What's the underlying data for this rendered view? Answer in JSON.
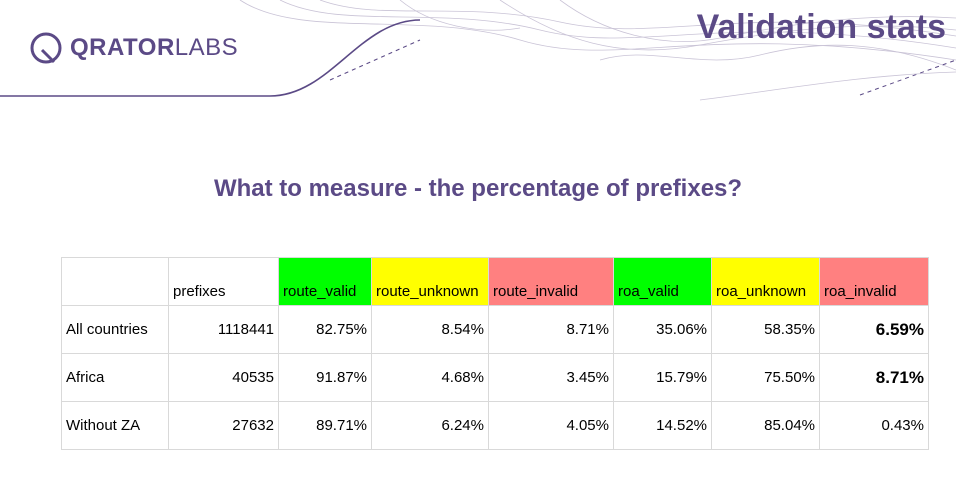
{
  "header": {
    "logo_bold": "QRATOR",
    "logo_light": "LABS",
    "title": "Validation stats"
  },
  "subtitle": "What to measure - the percentage of prefixes?",
  "colors": {
    "brand": "#5b4a86",
    "valid": "#00ff00",
    "unknown": "#ffff00",
    "invalid": "#ff8080"
  },
  "table": {
    "headers": [
      "",
      "prefixes",
      "route_valid",
      "route_unknown",
      "route_invalid",
      "roa_valid",
      "roa_unknown",
      "roa_invalid"
    ],
    "rows": [
      {
        "label": "All countries",
        "prefixes": "1118441",
        "route_valid": "82.75%",
        "route_unknown": "8.54%",
        "route_invalid": "8.71%",
        "roa_valid": "35.06%",
        "roa_unknown": "58.35%",
        "roa_invalid": "6.59%"
      },
      {
        "label": "Africa",
        "prefixes": "40535",
        "route_valid": "91.87%",
        "route_unknown": "4.68%",
        "route_invalid": "3.45%",
        "roa_valid": "15.79%",
        "roa_unknown": "75.50%",
        "roa_invalid": "8.71%"
      },
      {
        "label": "Without ZA",
        "prefixes": "27632",
        "route_valid": "89.71%",
        "route_unknown": "6.24%",
        "route_invalid": "4.05%",
        "roa_valid": "14.52%",
        "roa_unknown": "85.04%",
        "roa_invalid": "0.43%"
      }
    ]
  }
}
